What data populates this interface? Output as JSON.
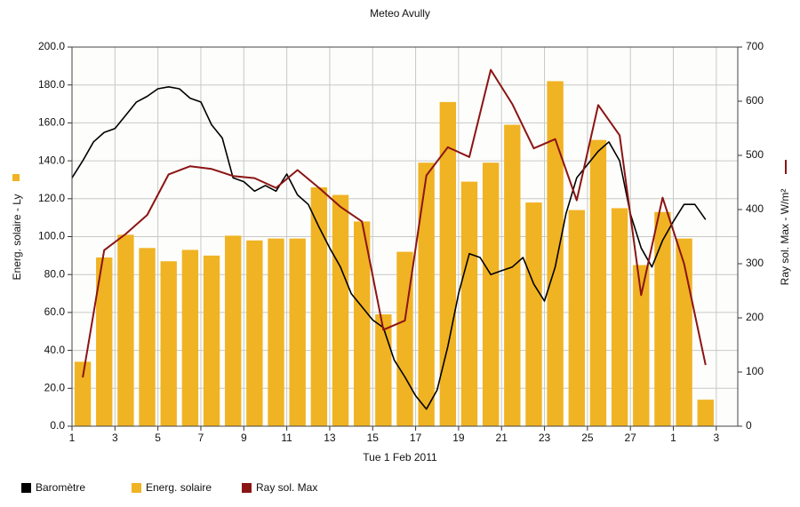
{
  "chart_data": {
    "type": "bar_line",
    "title": "Meteo  Avully",
    "xlabel": "Tue 1 Feb 2011",
    "ylabel": "Energ. solaire - Ly",
    "y2label": "Ray sol. Max - W/m²",
    "xlim": [
      0,
      31
    ],
    "xticks": [
      {
        "value": 0,
        "label": "1"
      },
      {
        "value": 2,
        "label": "3"
      },
      {
        "value": 4,
        "label": "5"
      },
      {
        "value": 6,
        "label": "7"
      },
      {
        "value": 8,
        "label": "9"
      },
      {
        "value": 10,
        "label": "11"
      },
      {
        "value": 12,
        "label": "13"
      },
      {
        "value": 14,
        "label": "15"
      },
      {
        "value": 16,
        "label": "17"
      },
      {
        "value": 18,
        "label": "19"
      },
      {
        "value": 20,
        "label": "21"
      },
      {
        "value": 22,
        "label": "23"
      },
      {
        "value": 24,
        "label": "25"
      },
      {
        "value": 26,
        "label": "27"
      },
      {
        "value": 28,
        "label": "1"
      },
      {
        "value": 30,
        "label": "3"
      }
    ],
    "ylim": [
      0,
      200
    ],
    "yticks": [
      {
        "value": 0,
        "label": "0.0"
      },
      {
        "value": 20,
        "label": "20.0"
      },
      {
        "value": 40,
        "label": "40.0"
      },
      {
        "value": 60,
        "label": "60.0"
      },
      {
        "value": 80,
        "label": "80.0"
      },
      {
        "value": 100,
        "label": "100.0"
      },
      {
        "value": 120,
        "label": "120.0"
      },
      {
        "value": 140,
        "label": "140.0"
      },
      {
        "value": 160,
        "label": "160.0"
      },
      {
        "value": 180,
        "label": "180.0"
      },
      {
        "value": 200,
        "label": "200.0"
      }
    ],
    "y2lim": [
      0,
      700
    ],
    "y2ticks": [
      0,
      100,
      200,
      300,
      400,
      500,
      600,
      700
    ],
    "grid": true,
    "legend": "bottom",
    "series": [
      {
        "name": "Baromètre",
        "type": "line",
        "color": "#000000",
        "x": [
          0,
          0.5,
          1,
          1.5,
          2,
          2.5,
          3,
          3.5,
          4,
          4.5,
          5,
          5.5,
          6,
          6.5,
          7,
          7.5,
          8,
          8.5,
          9,
          9.5,
          10,
          10.5,
          11,
          11.5,
          12,
          12.5,
          13,
          13.5,
          14,
          14.5,
          15,
          15.5,
          16,
          16.5,
          17,
          17.5,
          18,
          18.5,
          19,
          19.5,
          20,
          20.5,
          21,
          21.5,
          22,
          22.5,
          23,
          23.5,
          24,
          24.5,
          25,
          25.5,
          26,
          26.5,
          27,
          27.5,
          28,
          28.5,
          29,
          29.5
        ],
        "values": [
          131,
          140,
          150,
          155,
          157,
          164,
          171,
          174,
          178,
          179,
          178,
          173,
          171,
          159,
          152,
          131,
          129,
          124,
          127,
          124,
          133,
          122,
          117,
          105,
          94,
          84,
          70,
          63,
          56,
          52,
          35,
          26,
          16,
          9,
          19,
          42,
          70,
          91,
          89,
          80,
          82,
          84,
          89,
          75,
          66,
          84,
          112,
          131,
          138,
          145,
          150,
          140,
          112,
          94,
          84,
          98,
          108,
          117,
          117,
          109
        ]
      },
      {
        "name": "Energ. solaire",
        "type": "bar",
        "color": "#f0b323",
        "x": [
          0.5,
          1.5,
          2.5,
          3.5,
          4.5,
          5.5,
          6.5,
          7.5,
          8.5,
          9.5,
          10.5,
          11.5,
          12.5,
          13.5,
          14.5,
          15.5,
          16.5,
          17.5,
          18.5,
          19.5,
          20.5,
          21.5,
          22.5,
          23.5,
          24.5,
          25.5,
          26.5,
          27.5,
          28.5,
          29.5
        ],
        "values": [
          34,
          89,
          101,
          94,
          87,
          93,
          90,
          100.5,
          98,
          99,
          99,
          126,
          122,
          108,
          59,
          92,
          139,
          171,
          129,
          139,
          159,
          118,
          182,
          114,
          151,
          115,
          85,
          113,
          99,
          14
        ]
      },
      {
        "name": "Ray sol. Max",
        "type": "line",
        "axis": "y2",
        "color": "#8b1414",
        "x": [
          0.5,
          1.5,
          2.5,
          3.5,
          4.5,
          5.5,
          6.5,
          7.5,
          8.5,
          9.5,
          10.5,
          11.5,
          12.5,
          13.5,
          14.5,
          15.5,
          16.5,
          17.5,
          18.5,
          19.5,
          20.5,
          21.5,
          22.5,
          23.5,
          24.5,
          25.5,
          26.5,
          27.5,
          28.5,
          29.5
        ],
        "values": [
          90,
          325,
          355,
          390,
          465,
          480,
          475,
          462,
          458,
          440,
          473,
          440,
          405,
          378,
          178,
          195,
          463,
          515,
          497,
          658,
          595,
          513,
          530,
          417,
          593,
          537,
          242,
          422,
          300,
          113
        ]
      }
    ]
  }
}
